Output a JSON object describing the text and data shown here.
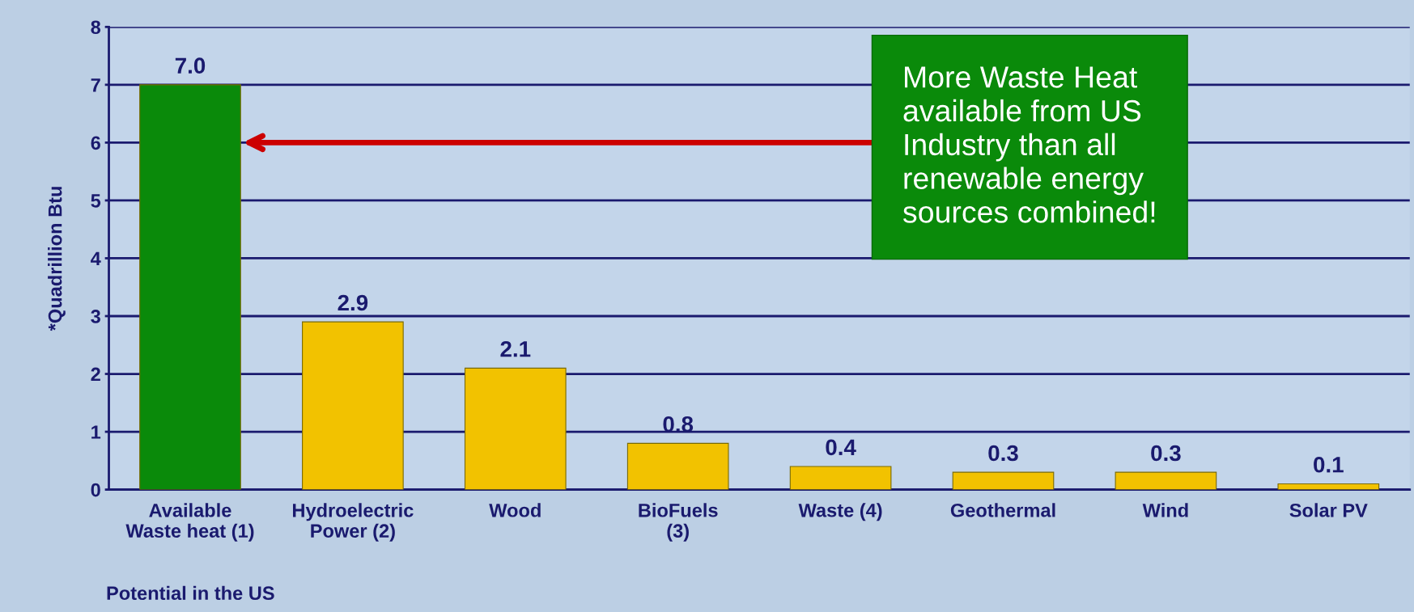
{
  "chart_data": {
    "type": "bar",
    "categories": [
      "Available\nWaste heat (1)",
      "Hydroelectric\nPower (2)",
      "Wood",
      "BioFuels\n(3)",
      "Waste (4)",
      "Geothermal",
      "Wind",
      "Solar PV"
    ],
    "values": [
      7.0,
      2.9,
      2.1,
      0.8,
      0.4,
      0.3,
      0.3,
      0.1
    ],
    "colors": [
      "#0a8a0a",
      "#f2c200",
      "#f2c200",
      "#f2c200",
      "#f2c200",
      "#f2c200",
      "#f2c200",
      "#f2c200"
    ],
    "value_labels": [
      "7.0",
      "2.9",
      "2.1",
      "0.8",
      "0.4",
      "0.3",
      "0.3",
      "0.1"
    ],
    "ylabel": "*Quadrillion Btu",
    "xlabel": "Potential in the US",
    "ylim": [
      0,
      8
    ],
    "yticks": [
      0,
      1,
      2,
      3,
      4,
      5,
      6,
      7,
      8
    ],
    "grid": "y",
    "annotations": [
      "More Waste Heat\navailable from US\nIndustry than all\nrenewable energy\nsources combined!"
    ]
  }
}
